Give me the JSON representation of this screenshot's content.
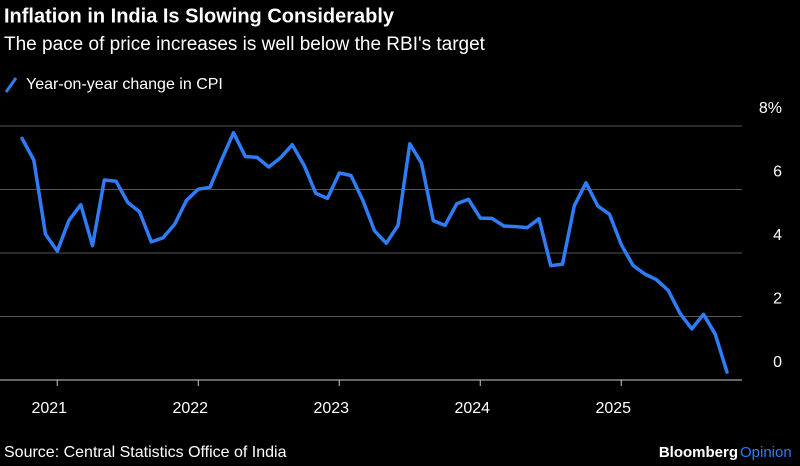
{
  "chart_data": {
    "type": "line",
    "title": "Inflation in India Is Slowing Considerably",
    "subtitle": "The pace of price increases is well below the RBI's target",
    "source": "Source: Central Statistics Office of India",
    "brand": "Bloomberg",
    "brand_suffix": "Opinion",
    "categories": [
      null,
      null,
      null,
      "2021",
      null,
      null,
      null,
      null,
      null,
      null,
      null,
      null,
      null,
      null,
      null,
      "2022",
      null,
      null,
      null,
      null,
      null,
      null,
      null,
      null,
      null,
      null,
      null,
      "2023",
      null,
      null,
      null,
      null,
      null,
      null,
      null,
      null,
      null,
      null,
      null,
      "2024",
      null,
      null,
      null,
      null,
      null,
      null,
      null,
      null,
      null,
      null,
      null,
      "2025",
      null,
      null,
      null,
      null,
      null,
      null,
      null,
      null,
      null
    ],
    "series": [
      {
        "name": "Year-on-year change in CPI",
        "color": "#2e7cf6",
        "values": [
          7.61,
          6.93,
          4.59,
          4.06,
          5.03,
          5.52,
          4.23,
          6.3,
          6.26,
          5.59,
          5.3,
          4.35,
          4.48,
          4.91,
          5.66,
          6.01,
          6.07,
          6.95,
          7.79,
          7.04,
          7.01,
          6.71,
          7.0,
          7.41,
          6.77,
          5.88,
          5.72,
          6.52,
          6.44,
          5.66,
          4.7,
          4.31,
          4.87,
          7.44,
          6.83,
          5.02,
          4.87,
          5.55,
          5.69,
          5.1,
          5.09,
          4.85,
          4.83,
          4.8,
          5.08,
          3.6,
          3.65,
          5.49,
          6.21,
          5.48,
          5.22,
          4.26,
          3.61,
          3.34,
          3.16,
          2.82,
          2.1,
          1.61,
          2.07,
          1.44,
          0.25
        ]
      }
    ],
    "ylim": [
      0,
      8
    ],
    "yticks": [
      0,
      2,
      4,
      6,
      {
        "value": 8,
        "label": "8%"
      }
    ],
    "grid": true
  }
}
